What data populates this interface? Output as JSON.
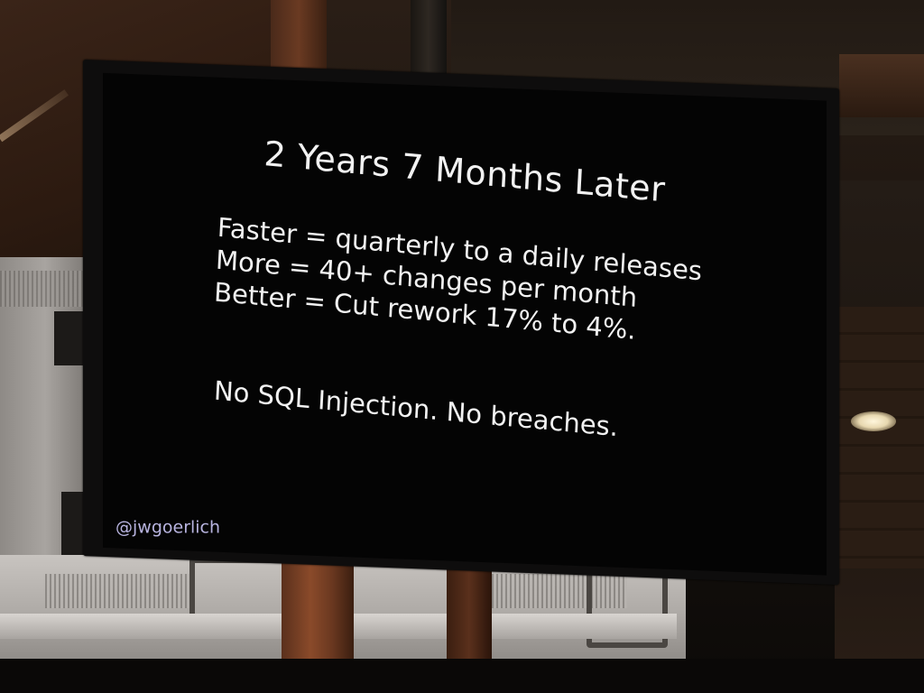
{
  "slide": {
    "title": "2 Years 7 Months Later",
    "lines": [
      "Faster = quarterly to a daily releases",
      "More = 40+ changes per month",
      "Better = Cut rework 17% to 4%."
    ],
    "note": "No SQL Injection. No breaches.",
    "handle": "@jwgoerlich"
  }
}
